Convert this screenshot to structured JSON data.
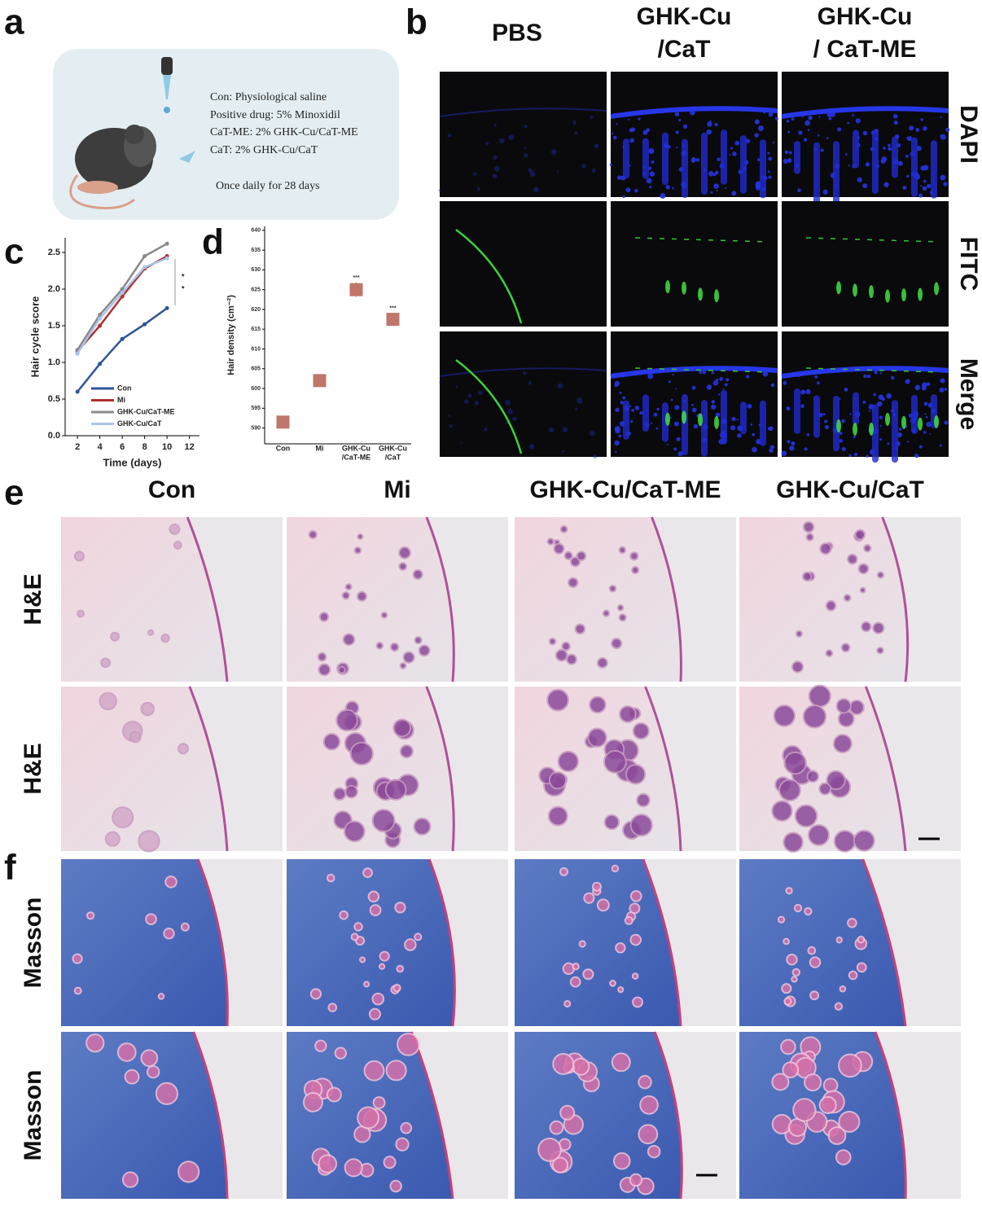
{
  "panel_labels": [
    "a",
    "b",
    "c",
    "d",
    "e",
    "f"
  ],
  "panel_a": {
    "lines": [
      "Con:  Physiological saline",
      "Positive drug: 5% Minoxidil",
      "CaT-ME: 2% GHK-Cu/CaT-ME",
      "CaT: 2% GHK-Cu/CaT",
      "Once daily for 28 days"
    ]
  },
  "panel_b": {
    "columns": [
      [
        "PBS"
      ],
      [
        "GHK-Cu",
        "/CaT"
      ],
      [
        "GHK-Cu",
        "/ CaT-ME"
      ]
    ],
    "rows": [
      "DAPI",
      "FITC",
      "Merge"
    ]
  },
  "panel_e": {
    "columns": [
      "Con",
      "Mi",
      "GHK-Cu/CaT-ME",
      "GHK-Cu/CaT"
    ],
    "rows": [
      "H&E",
      "H&E"
    ]
  },
  "panel_f": {
    "rows": [
      "Masson",
      "Masson"
    ]
  },
  "chart_data": [
    {
      "type": "line",
      "xlabel": "Time (days)",
      "ylabel": "Hair cycle score",
      "x": [
        2,
        4,
        6,
        8,
        10
      ],
      "xlim": [
        0.9,
        12.9
      ],
      "xticks": [
        2,
        4,
        6,
        8,
        10,
        12
      ],
      "ylim": [
        0,
        2.7
      ],
      "yticks": [
        {
          "value": 0,
          "label": "0.0"
        },
        0.5,
        {
          "value": 1,
          "label": "1.0"
        },
        1.5,
        {
          "value": 2,
          "label": "2.0"
        },
        2.5
      ],
      "legend": "lower left",
      "annotations": [
        "*",
        "*"
      ],
      "series": [
        {
          "name": "Con",
          "color": "#2f5597",
          "values": [
            0.6,
            0.98,
            1.32,
            1.52,
            1.74
          ]
        },
        {
          "name": "Mi",
          "color": "#b03030",
          "values": [
            1.15,
            1.5,
            1.9,
            2.28,
            2.45
          ]
        },
        {
          "name": "GHK-Cu/CaT-ME",
          "color": "#8a8a8a",
          "values": [
            1.17,
            1.65,
            2.0,
            2.45,
            2.62
          ]
        },
        {
          "name": "GHK-Cu/CaT",
          "color": "#a9c4eb",
          "values": [
            1.12,
            1.6,
            1.95,
            2.3,
            2.42
          ]
        }
      ]
    },
    {
      "type": "scatter",
      "ylabel": "Hair density (cm⁻²)",
      "categories": [
        [
          "Con"
        ],
        [
          "Mi"
        ],
        [
          "GHK-Cu",
          "/CaT-ME"
        ],
        [
          "GHK-Cu",
          "/CaT"
        ]
      ],
      "values": [
        591.5,
        602,
        625,
        617.5
      ],
      "errors": [
        1.5,
        1.5,
        1.8,
        1.5
      ],
      "significance": [
        null,
        null,
        "***",
        "***"
      ],
      "color": "#c0766a",
      "ylim": [
        586,
        641
      ],
      "yticks": [
        590,
        595,
        600,
        605,
        610,
        615,
        620,
        625,
        630,
        635,
        640
      ]
    }
  ]
}
